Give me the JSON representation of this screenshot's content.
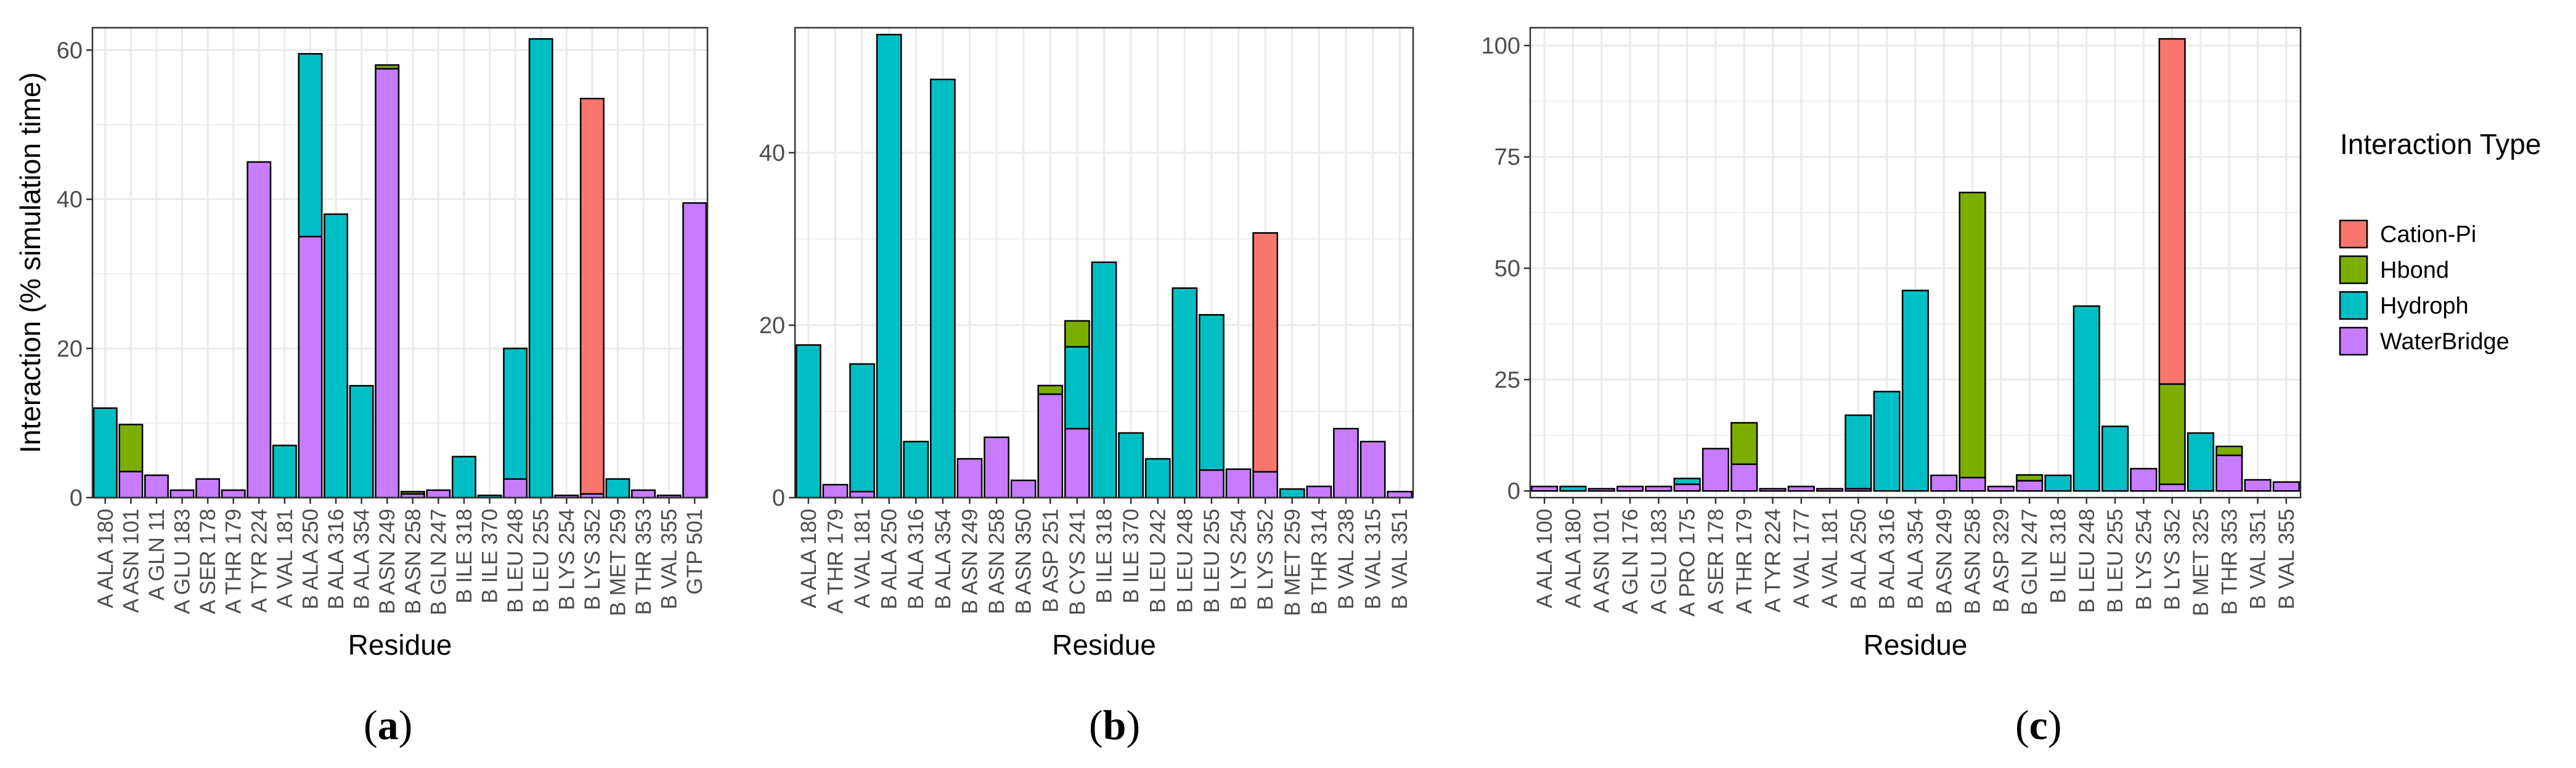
{
  "colors": {
    "CationPi": "#F8766D",
    "Hbond": "#7CAE00",
    "Hydroph": "#00BFC4",
    "WaterBridge": "#C77CFF",
    "grid": "#ebebeb",
    "frame": "#333333"
  },
  "legend": {
    "title": "Interaction Type",
    "items": [
      {
        "key": "CationPi",
        "label": "Cation-Pi"
      },
      {
        "key": "Hbond",
        "label": "Hbond"
      },
      {
        "key": "Hydroph",
        "label": "Hydroph"
      },
      {
        "key": "WaterBridge",
        "label": "WaterBridge"
      }
    ]
  },
  "chart_data": [
    {
      "type": "bar",
      "stacked": true,
      "panel_label": "a",
      "xlabel": "Residue",
      "ylabel": "Interaction (% simulation time)",
      "ylim": [
        0,
        63
      ],
      "yticks": [
        0,
        20,
        40,
        60
      ],
      "grid": true,
      "categories": [
        "A ALA 180",
        "A ASN 101",
        "A GLN 11",
        "A GLU 183",
        "A SER 178",
        "A THR 179",
        "A TYR 224",
        "A VAL 181",
        "B ALA 250",
        "B ALA 316",
        "B ALA 354",
        "B ASN 249",
        "B ASN 258",
        "B GLN 247",
        "B ILE 318",
        "B ILE 370",
        "B LEU 248",
        "B LEU 255",
        "B LYS 254",
        "B LYS 352",
        "B MET 259",
        "B THR 353",
        "B VAL 355",
        "GTP 501"
      ],
      "series": [
        {
          "name": "WaterBridge",
          "values": [
            0,
            3.5,
            3,
            1,
            2.5,
            1,
            45,
            0,
            35,
            0,
            0,
            57.5,
            0.5,
            1,
            0,
            0,
            2.5,
            0,
            0.3,
            0.5,
            0,
            1,
            0.3,
            39.5
          ]
        },
        {
          "name": "Hydroph",
          "values": [
            12,
            0,
            0,
            0,
            0,
            0,
            0,
            7,
            24.5,
            38,
            15,
            0,
            0,
            0,
            5.5,
            0.3,
            17.5,
            61.5,
            0,
            0,
            2.5,
            0,
            0,
            0
          ]
        },
        {
          "name": "Hbond",
          "values": [
            0,
            6.3,
            0,
            0,
            0,
            0,
            0,
            0,
            0,
            0,
            0,
            0.5,
            0.3,
            0,
            0,
            0,
            0,
            0,
            0,
            0,
            0,
            0,
            0,
            0
          ]
        },
        {
          "name": "Cation-Pi",
          "values": [
            0,
            0,
            0,
            0,
            0,
            0,
            0,
            0,
            0,
            0,
            0,
            0,
            0,
            0,
            0,
            0,
            0,
            0,
            0,
            53,
            0,
            0,
            0,
            0
          ]
        }
      ]
    },
    {
      "type": "bar",
      "stacked": true,
      "panel_label": "b",
      "xlabel": "Residue",
      "ylabel": "",
      "ylim": [
        0,
        54.5
      ],
      "yticks": [
        0,
        20,
        40
      ],
      "grid": true,
      "categories": [
        "A ALA 180",
        "A THR 179",
        "A VAL 181",
        "B ALA 250",
        "B ALA 316",
        "B ALA 354",
        "B ASN 249",
        "B ASN 258",
        "B ASN 350",
        "B ASP 251",
        "B CYS 241",
        "B ILE 318",
        "B ILE 370",
        "B LEU 242",
        "B LEU 248",
        "B LEU 255",
        "B LYS 254",
        "B LYS 352",
        "B MET 259",
        "B THR 314",
        "B VAL 238",
        "B VAL 315",
        "B VAL 351"
      ],
      "series": [
        {
          "name": "WaterBridge",
          "values": [
            0,
            1.5,
            0.7,
            0,
            0,
            0,
            4.5,
            7,
            2,
            12,
            8,
            0,
            0,
            0,
            0,
            3.2,
            3.3,
            3,
            0,
            1.3,
            8,
            6.5,
            0.7
          ]
        },
        {
          "name": "Hydroph",
          "values": [
            17.7,
            0,
            14.8,
            53.7,
            6.5,
            48.5,
            0,
            0,
            0,
            0,
            9.5,
            27.3,
            7.5,
            4.5,
            24.3,
            18,
            0,
            0,
            1,
            0,
            0,
            0,
            0
          ]
        },
        {
          "name": "Hbond",
          "values": [
            0,
            0,
            0,
            0,
            0,
            0,
            0,
            0,
            0,
            1,
            3,
            0,
            0,
            0,
            0,
            0,
            0,
            0,
            0,
            0,
            0,
            0,
            0
          ]
        },
        {
          "name": "Cation-Pi",
          "values": [
            0,
            0,
            0,
            0,
            0,
            0,
            0,
            0,
            0,
            0,
            0,
            0,
            0,
            0,
            0,
            0,
            0,
            27.7,
            0,
            0,
            0,
            0,
            0
          ]
        }
      ]
    },
    {
      "type": "bar",
      "stacked": true,
      "panel_label": "c",
      "xlabel": "Residue",
      "ylabel": "",
      "ylim": [
        -1.5,
        104
      ],
      "yticks": [
        0,
        25,
        50,
        75,
        100
      ],
      "grid": true,
      "categories": [
        "A ALA 100",
        "A ALA 180",
        "A ASN 101",
        "A GLN 176",
        "A GLU 183",
        "A PRO 175",
        "A SER 178",
        "A THR 179",
        "A TYR 224",
        "A VAL 177",
        "A VAL 181",
        "B ALA 250",
        "B ALA 316",
        "B ALA 354",
        "B ASN 249",
        "B ASN 258",
        "B ASP 329",
        "B GLN 247",
        "B ILE 318",
        "B LEU 248",
        "B LEU 255",
        "B LYS 254",
        "B LYS 352",
        "B MET 325",
        "B THR 353",
        "B VAL 351",
        "B VAL 355"
      ],
      "series": [
        {
          "name": "WaterBridge",
          "values": [
            1,
            0,
            0.5,
            1,
            1,
            1.5,
            9.5,
            6,
            0.5,
            1,
            0.5,
            0.5,
            0,
            0,
            3.5,
            3,
            1,
            2.3,
            0,
            0,
            0,
            5,
            1.5,
            0,
            8,
            2.5,
            2
          ]
        },
        {
          "name": "Hydroph",
          "values": [
            0,
            1,
            0,
            0,
            0,
            1.3,
            0,
            0,
            0,
            0,
            0,
            16.5,
            22.3,
            45,
            0,
            0,
            0,
            0,
            3.5,
            41.5,
            14.5,
            0,
            0,
            13,
            0,
            0,
            0
          ]
        },
        {
          "name": "Hbond",
          "values": [
            0,
            0,
            0,
            0,
            0,
            0,
            0,
            9.3,
            0,
            0,
            0,
            0,
            0,
            0,
            0,
            64,
            0,
            1.3,
            0,
            0,
            0,
            0,
            22.5,
            0,
            2,
            0,
            0
          ]
        },
        {
          "name": "Cation-Pi",
          "values": [
            0,
            0,
            0,
            0,
            0,
            0,
            0,
            0,
            0,
            0,
            0,
            0,
            0,
            0,
            0,
            0,
            0,
            0,
            0,
            0,
            0,
            0,
            77.5,
            0,
            0,
            0,
            0
          ]
        }
      ]
    }
  ]
}
